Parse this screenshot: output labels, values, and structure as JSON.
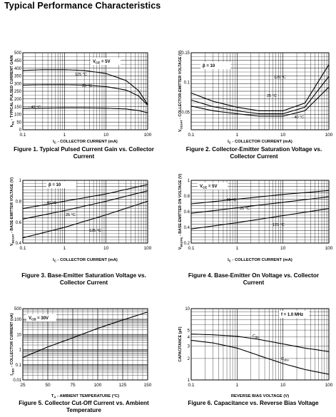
{
  "page": {
    "title": "Typical Performance Characteristics"
  },
  "chart_data": [
    {
      "id": "fig1",
      "type": "line",
      "caption": "Figure 1. Typical Pulsed Current Gain vs. Collector Current",
      "xlabel": "I_C - COLLECTOR CURRENT (mA)",
      "ylabel": "h_FE - TYPICAL PULSED CURRENT GAIN",
      "xscale": "log",
      "xlim": [
        0.1,
        100
      ],
      "ylim": [
        0,
        500
      ],
      "xticks": [
        0.1,
        1,
        10,
        100
      ],
      "xtick_labels": [
        "0.1",
        "1",
        "10",
        "100"
      ],
      "yticks": [
        0,
        50,
        100,
        150,
        200,
        250,
        300,
        350,
        400,
        450,
        500
      ],
      "ytick_labels": [
        "0",
        "50",
        "100",
        "150",
        "200",
        "250",
        "300",
        "350",
        "400",
        "450",
        "500"
      ],
      "grid": true,
      "annotation": "V_CE = 5V",
      "series": [
        {
          "name": "125 °C",
          "x": [
            0.1,
            0.3,
            1,
            3,
            10,
            30,
            60,
            100
          ],
          "y": [
            385,
            390,
            390,
            385,
            365,
            320,
            255,
            165
          ]
        },
        {
          "name": "25 °C",
          "x": [
            0.1,
            0.3,
            1,
            3,
            10,
            30,
            60,
            100
          ],
          "y": [
            290,
            292,
            292,
            290,
            280,
            258,
            220,
            160
          ]
        },
        {
          "name": "- 40 °C",
          "x": [
            0.1,
            0.3,
            1,
            3,
            10,
            30,
            60,
            100
          ],
          "y": [
            138,
            140,
            142,
            142,
            140,
            135,
            125,
            110
          ]
        }
      ]
    },
    {
      "id": "fig2",
      "type": "line",
      "caption": "Figure 2. Collector-Emitter Saturation Voltage vs. Collector Current",
      "xlabel": "I_C - COLLECTOR CURRENT (mA)",
      "ylabel": "V_CESAT - COLLECTOR-EMITTER VOLTAGE (V)",
      "xscale": "log",
      "xlim": [
        0.1,
        100
      ],
      "ylim": [
        0.02,
        0.15
      ],
      "yticks": [
        0.05,
        0.1,
        0.15
      ],
      "ytick_labels": [
        "0.05",
        "0.1",
        "0.15"
      ],
      "xticks": [
        0.1,
        1,
        10,
        100
      ],
      "xtick_labels": [
        "0.1",
        "1",
        "10",
        "100"
      ],
      "grid": true,
      "annotation": "β = 10",
      "series": [
        {
          "name": "125 °C",
          "x": [
            0.1,
            0.3,
            1,
            3,
            10,
            30,
            100
          ],
          "y": [
            0.082,
            0.068,
            0.058,
            0.052,
            0.052,
            0.065,
            0.13
          ]
        },
        {
          "name": "25 °C",
          "x": [
            0.1,
            0.3,
            1,
            3,
            10,
            30,
            100
          ],
          "y": [
            0.07,
            0.059,
            0.052,
            0.047,
            0.047,
            0.058,
            0.11
          ]
        },
        {
          "name": "- 40 °C",
          "x": [
            0.1,
            0.3,
            1,
            3,
            10,
            30,
            100
          ],
          "y": [
            0.06,
            0.052,
            0.047,
            0.043,
            0.043,
            0.052,
            0.092
          ]
        }
      ]
    },
    {
      "id": "fig3",
      "type": "line",
      "caption": "Figure 3. Base-Emitter Saturation Voltage vs. Collector Current",
      "xlabel": "I_C - COLLECTOR CURRENT (mA)",
      "ylabel": "V_BESAT - BASE-EMITTER VOLTAGE (V)",
      "xscale": "log",
      "xlim": [
        0.1,
        100
      ],
      "ylim": [
        0.4,
        1.0
      ],
      "yticks": [
        0.4,
        0.6,
        0.8,
        1.0
      ],
      "ytick_labels": [
        "0.4",
        "0.6",
        "0.8",
        "1"
      ],
      "xticks": [
        0.1,
        1,
        10,
        100
      ],
      "xtick_labels": [
        "0.1",
        "1",
        "10",
        "100"
      ],
      "grid": true,
      "annotation": "β = 10",
      "series": [
        {
          "name": "- 40 °C",
          "x": [
            0.1,
            1,
            10,
            100
          ],
          "y": [
            0.73,
            0.8,
            0.87,
            0.96
          ]
        },
        {
          "name": "25 °C",
          "x": [
            0.1,
            1,
            10,
            100
          ],
          "y": [
            0.63,
            0.71,
            0.8,
            0.9
          ]
        },
        {
          "name": "125 °C",
          "x": [
            0.1,
            1,
            10,
            100
          ],
          "y": [
            0.45,
            0.55,
            0.67,
            0.8
          ]
        }
      ]
    },
    {
      "id": "fig4",
      "type": "line",
      "caption": "Figure 4. Base-Emitter On Voltage vs. Collector Current",
      "xlabel": "I_C - COLLECTOR CURRENT (mA)",
      "ylabel": "V_BE(ON) - BASE-EMITTER ON VOLTAGE (V)",
      "xscale": "log",
      "xlim": [
        0.1,
        100
      ],
      "ylim": [
        0.2,
        1.0
      ],
      "yticks": [
        0.2,
        0.4,
        0.6,
        0.8,
        1.0
      ],
      "ytick_labels": [
        "0.2",
        "0.4",
        "0.6",
        "0.8",
        "1"
      ],
      "xticks": [
        0.1,
        1,
        10,
        100
      ],
      "xtick_labels": [
        "0.1",
        "1",
        "10",
        "100"
      ],
      "grid": true,
      "annotation": "V_CE = 5V",
      "series": [
        {
          "name": "- 40 °C",
          "x": [
            0.1,
            1,
            10,
            100
          ],
          "y": [
            0.7,
            0.76,
            0.82,
            0.87
          ]
        },
        {
          "name": "25 °C",
          "x": [
            0.1,
            1,
            10,
            100
          ],
          "y": [
            0.58,
            0.65,
            0.72,
            0.79
          ]
        },
        {
          "name": "125 °C",
          "x": [
            0.1,
            1,
            10,
            100
          ],
          "y": [
            0.38,
            0.46,
            0.55,
            0.64
          ]
        }
      ]
    },
    {
      "id": "fig5",
      "type": "line",
      "caption": "Figure 5. Collector Cut-Off Current vs. Ambient Temperature",
      "xlabel": "T_A - AMBIENT TEMPERATURE (°C)",
      "ylabel": "I_CBO - COLLECTOR CURRENT (nA)",
      "xscale": "linear",
      "xlim": [
        25,
        150
      ],
      "yscale": "log",
      "ylim": [
        0.01,
        500
      ],
      "xticks": [
        25,
        50,
        75,
        100,
        125,
        150
      ],
      "xtick_labels": [
        "25",
        "50",
        "75",
        "100",
        "125",
        "150"
      ],
      "yticks": [
        0.01,
        0.1,
        1,
        10,
        100,
        500
      ],
      "ytick_labels": [
        "0.01",
        "0.1",
        "1",
        "10",
        "100",
        "500"
      ],
      "grid": true,
      "annotation": "V_CB = 30V",
      "series": [
        {
          "name": "",
          "x": [
            25,
            50,
            75,
            100,
            125,
            150
          ],
          "y": [
            0.3,
            1.5,
            6,
            25,
            90,
            300
          ]
        }
      ]
    },
    {
      "id": "fig6",
      "type": "line",
      "caption": "Figure 6. Capacitance vs. Reverse Bias Voltage",
      "xlabel": "REVERSE BIAS VOLTAGE (V)",
      "ylabel": "CAPACITANCE (pF)",
      "xscale": "log",
      "xlim": [
        0.1,
        100
      ],
      "yscale": "log",
      "ylim": [
        1,
        10
      ],
      "xticks": [
        0.1,
        1,
        10,
        100
      ],
      "xtick_labels": [
        "0.1",
        "1",
        "10",
        "100"
      ],
      "yticks": [
        1,
        2,
        3,
        4,
        5,
        10
      ],
      "ytick_labels": [
        "1",
        "2",
        "3",
        "4",
        "5",
        "10"
      ],
      "grid": true,
      "annotation": "f = 1.0 MHz",
      "series": [
        {
          "name": "C_ibo",
          "x": [
            0.1,
            0.3,
            1,
            3,
            10,
            30,
            100
          ],
          "y": [
            4.4,
            4.3,
            4.1,
            3.7,
            3.2,
            2.8,
            2.5
          ]
        },
        {
          "name": "C_obo",
          "x": [
            0.1,
            0.3,
            1,
            3,
            10,
            30,
            100
          ],
          "y": [
            3.6,
            3.3,
            2.8,
            2.2,
            1.7,
            1.4,
            1.2
          ]
        }
      ]
    }
  ]
}
